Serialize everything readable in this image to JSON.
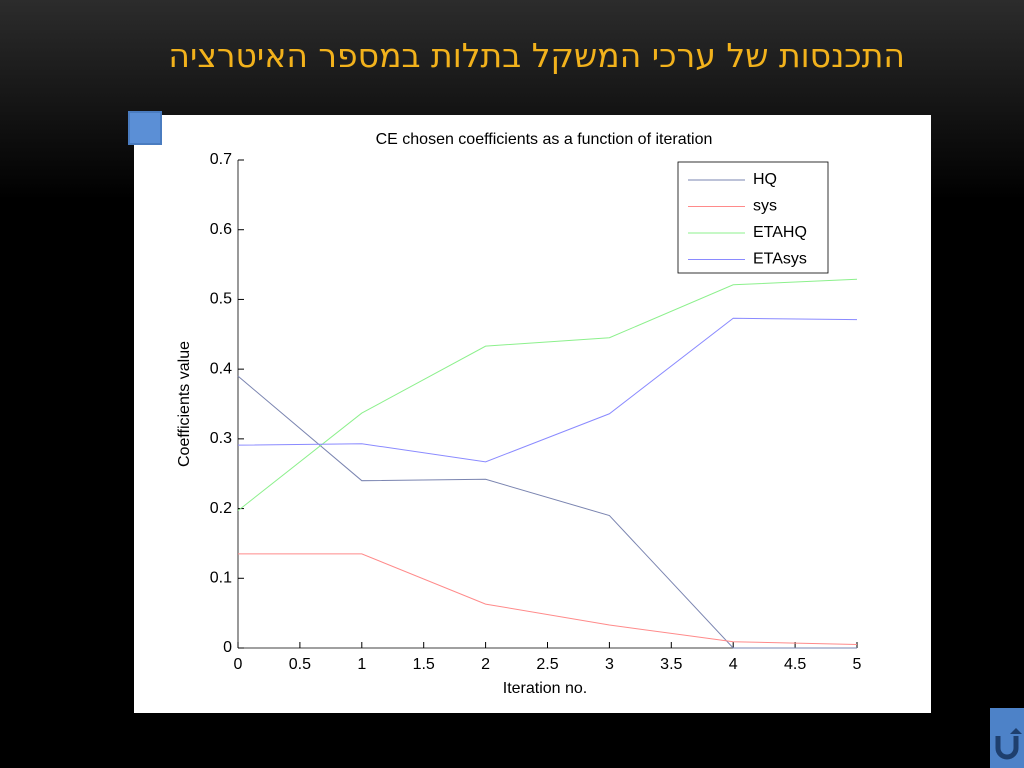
{
  "slide_title": "התכנסות של ערכי המשקל בתלות במספר האיטרציה",
  "chart_data": {
    "type": "line",
    "title": "CE chosen coefficients as a function of iteration",
    "x_label": "Iteration no.",
    "y_label": "Coefficients value",
    "x": [
      0,
      1,
      2,
      3,
      4,
      5
    ],
    "series": [
      {
        "name": "HQ",
        "color": "#7a84b0",
        "values": [
          0.39,
          0.24,
          0.242,
          0.19,
          0,
          0
        ]
      },
      {
        "name": "sys",
        "color": "#ff8a8a",
        "values": [
          0.135,
          0.135,
          0.063,
          0.033,
          0.009,
          0.005
        ]
      },
      {
        "name": "ETAHQ",
        "color": "#8cf08c",
        "values": [
          0.197,
          0.337,
          0.433,
          0.445,
          0.521,
          0.529
        ]
      },
      {
        "name": "ETAsys",
        "color": "#8a8aff",
        "values": [
          0.291,
          0.293,
          0.267,
          0.336,
          0.473,
          0.471
        ]
      }
    ],
    "xlim": [
      0,
      5
    ],
    "xticks": [
      0,
      0.5,
      1,
      1.5,
      2,
      2.5,
      3,
      3.5,
      4,
      4.5,
      5
    ],
    "ylim": [
      0,
      0.7
    ],
    "yticks": [
      0,
      0.1,
      0.2,
      0.3,
      0.4,
      0.5,
      0.6,
      0.7
    ],
    "legend": "upper-right"
  }
}
